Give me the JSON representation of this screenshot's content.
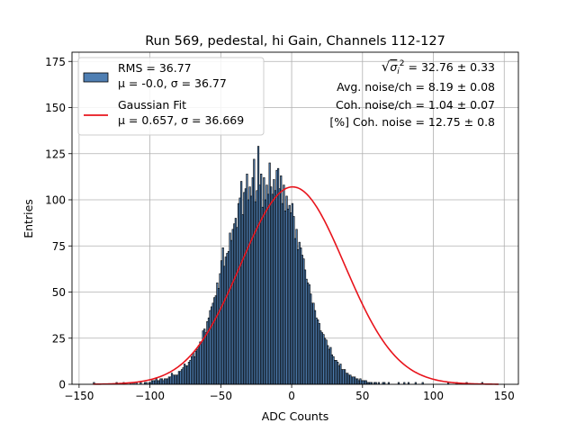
{
  "chart_data": {
    "type": "bar",
    "title": "Run 569, pedestal, hi Gain, Channels 112-127",
    "xlabel": "ADC Counts",
    "ylabel": "Entries",
    "xlim": [
      -155,
      160
    ],
    "ylim": [
      0,
      180
    ],
    "xticks": [
      -150,
      -100,
      -50,
      0,
      50,
      100,
      150
    ],
    "yticks": [
      0,
      25,
      50,
      75,
      100,
      125,
      150,
      175
    ],
    "grid": true,
    "legend": {
      "placement": "upper-left",
      "entries": [
        {
          "kind": "patch",
          "lines": [
            "RMS = 36.77",
            "μ = -0.0, σ = 36.77"
          ]
        },
        {
          "kind": "line",
          "lines": [
            "Gaussian Fit",
            "μ = 0.657, σ = 36.669"
          ]
        }
      ]
    },
    "annotations": [
      {
        "prefix": "√",
        "sym": "σ",
        "sub": "i",
        "sup": "2",
        "rest": " = 32.76 ± 0.33"
      },
      {
        "text": "Avg. noise/ch = 8.19 ± 0.08"
      },
      {
        "text": "Coh. noise/ch = 1.04 ± 0.07"
      },
      {
        "text": "[%] Coh. noise = 12.75 ± 0.8"
      }
    ],
    "histogram": {
      "name": "RMS = 36.77",
      "bin_start": -140,
      "bin_width": 1,
      "counts": [
        1,
        0,
        0,
        0,
        0,
        0,
        0,
        0,
        0,
        0,
        0,
        0,
        0,
        0,
        0,
        0,
        1,
        0,
        0,
        0,
        0,
        1,
        0,
        0,
        0,
        0,
        1,
        0,
        1,
        0,
        1,
        0,
        0,
        1,
        0,
        0,
        1,
        1,
        0,
        1,
        1,
        2,
        2,
        2,
        3,
        2,
        2,
        3,
        3,
        2,
        3,
        3,
        3,
        4,
        4,
        6,
        5,
        5,
        5,
        5,
        7,
        7,
        8,
        9,
        11,
        10,
        10,
        12,
        13,
        15,
        17,
        15,
        18,
        19,
        21,
        23,
        23,
        29,
        30,
        28,
        34,
        36,
        40,
        42,
        44,
        47,
        48,
        55,
        52,
        60,
        67,
        74,
        64,
        69,
        71,
        72,
        82,
        78,
        84,
        87,
        90,
        85,
        98,
        101,
        110,
        92,
        104,
        106,
        114,
        100,
        107,
        102,
        112,
        122,
        99,
        105,
        129,
        108,
        114,
        96,
        112,
        100,
        108,
        103,
        120,
        107,
        103,
        111,
        105,
        116,
        117,
        106,
        113,
        98,
        108,
        94,
        102,
        95,
        97,
        93,
        98,
        91,
        79,
        84,
        73,
        77,
        74,
        70,
        68,
        62,
        57,
        55,
        54,
        49,
        44,
        44,
        40,
        36,
        35,
        33,
        29,
        28,
        27,
        25,
        24,
        21,
        19,
        20,
        16,
        15,
        13,
        13,
        12,
        10,
        11,
        8,
        8,
        8,
        6,
        6,
        5,
        5,
        4,
        4,
        4,
        3,
        3,
        2,
        3,
        2,
        2,
        2,
        2,
        1,
        1,
        1,
        1,
        0,
        1,
        1,
        0,
        1,
        0,
        0,
        1,
        1,
        0,
        0,
        1,
        0,
        0,
        0,
        0,
        0,
        0,
        1,
        0,
        0,
        0,
        1,
        0,
        0,
        1,
        0,
        0,
        0,
        0,
        1,
        0,
        0,
        0,
        0,
        1,
        0,
        0,
        0,
        0,
        0,
        0,
        0,
        0,
        0,
        0,
        0,
        0,
        0,
        0,
        0,
        0,
        0,
        1,
        0,
        0,
        0,
        0,
        0,
        1,
        0,
        0,
        0,
        0,
        0,
        0,
        1,
        0,
        0,
        0,
        0,
        0,
        0,
        0,
        0,
        0,
        0,
        1
      ]
    },
    "fit": {
      "name": "Gaussian Fit",
      "mu": 0.657,
      "sigma": 36.669,
      "amplitude": 107,
      "x_range": [
        -140,
        146
      ]
    },
    "colors": {
      "bar_fill": "#4f7fb3",
      "bar_edge": "#000000",
      "fit_line": "#e8141c",
      "grid": "#b0b0b0",
      "legend_border": "#cccccc"
    }
  }
}
